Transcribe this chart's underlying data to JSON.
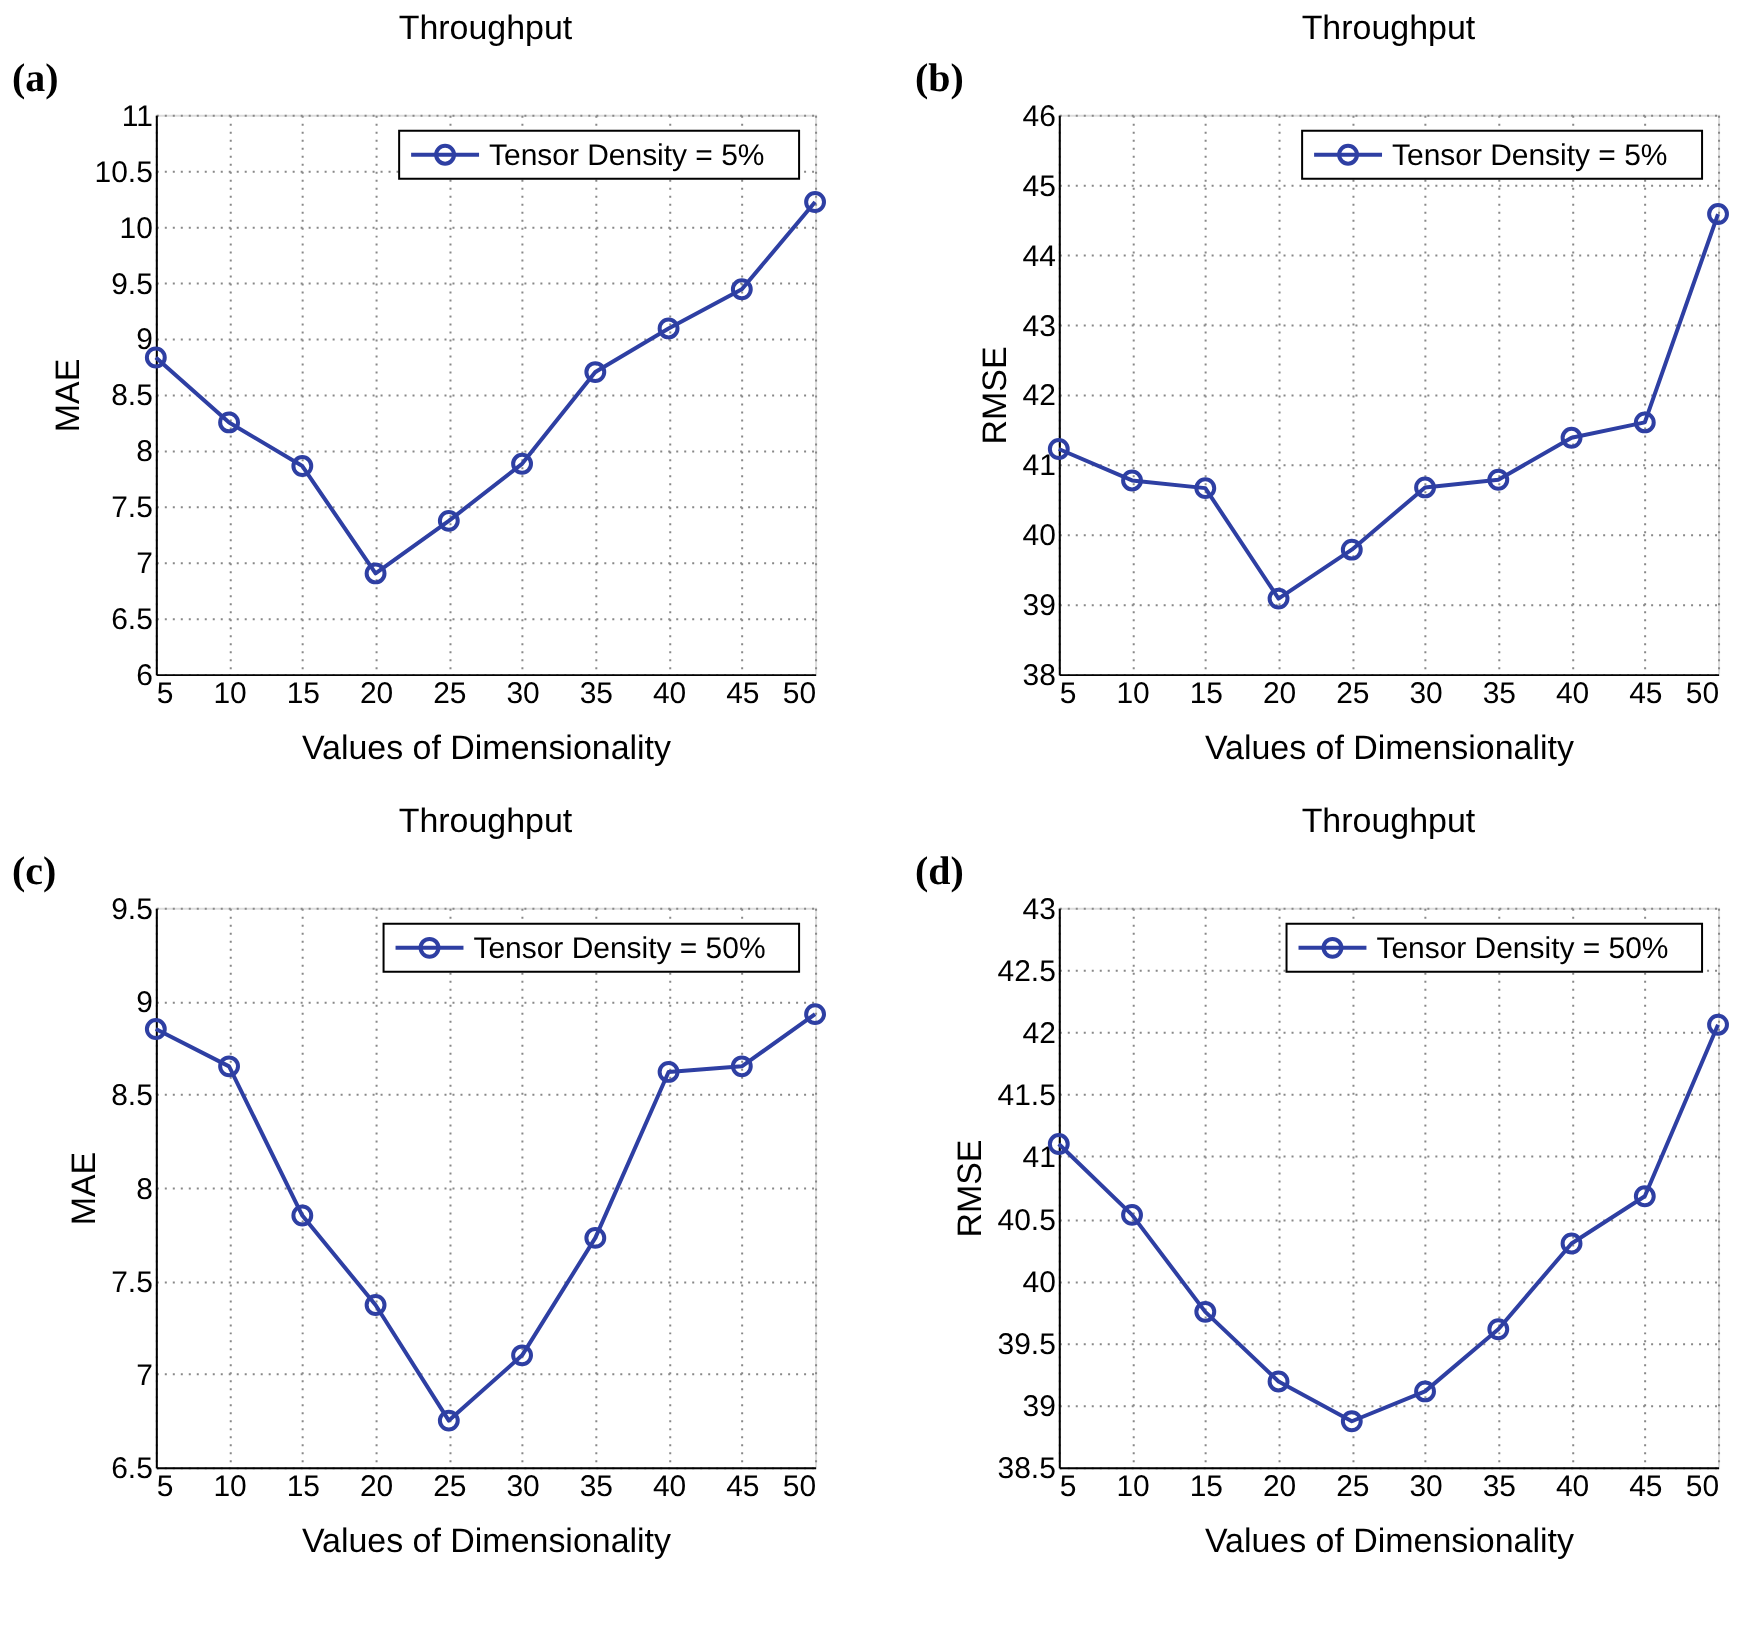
{
  "chart_data": [
    {
      "type": "line",
      "title": "Throughput",
      "annotations": [
        "(a)"
      ],
      "xlabel": "Values of Dimensionality",
      "ylabel": "MAE",
      "x": [
        5,
        10,
        15,
        20,
        25,
        30,
        35,
        40,
        45,
        50
      ],
      "xlim": [
        5,
        50
      ],
      "xticks": [
        5,
        10,
        15,
        20,
        25,
        30,
        35,
        40,
        45,
        50
      ],
      "ylim": [
        6,
        11
      ],
      "yticks": [
        6,
        6.5,
        7,
        7.5,
        8,
        8.5,
        9,
        9.5,
        10,
        10.5,
        11
      ],
      "grid": true,
      "legend": "top right",
      "marker": "circle",
      "line_style": "solid",
      "series": [
        {
          "name": "Tensor Density = 5%",
          "color": "#2e3fa3",
          "values": [
            8.83,
            8.25,
            7.86,
            6.9,
            7.37,
            7.88,
            8.7,
            9.09,
            9.44,
            10.22
          ]
        }
      ]
    },
    {
      "type": "line",
      "title": "Throughput",
      "annotations": [
        "(b)"
      ],
      "xlabel": "Values of Dimensionality",
      "ylabel": "RMSE",
      "x": [
        5,
        10,
        15,
        20,
        25,
        30,
        35,
        40,
        45,
        50
      ],
      "xlim": [
        5,
        50
      ],
      "xticks": [
        5,
        10,
        15,
        20,
        25,
        30,
        35,
        40,
        45,
        50
      ],
      "ylim": [
        38,
        46
      ],
      "yticks": [
        38,
        39,
        40,
        41,
        42,
        43,
        44,
        45,
        46
      ],
      "grid": true,
      "legend": "top right",
      "marker": "circle",
      "line_style": "solid",
      "series": [
        {
          "name": "Tensor Density = 5%",
          "color": "#2e3fa3",
          "values": [
            41.22,
            40.77,
            40.66,
            39.08,
            39.78,
            40.67,
            40.78,
            41.38,
            41.6,
            44.58
          ]
        }
      ]
    },
    {
      "type": "line",
      "title": "Throughput",
      "annotations": [
        "(c)"
      ],
      "xlabel": "Values of Dimensionality",
      "ylabel": "MAE",
      "x": [
        5,
        10,
        15,
        20,
        25,
        30,
        35,
        40,
        45,
        50
      ],
      "xlim": [
        5,
        50
      ],
      "xticks": [
        5,
        10,
        15,
        20,
        25,
        30,
        35,
        40,
        45,
        50
      ],
      "ylim": [
        6.5,
        9.5
      ],
      "yticks": [
        6.5,
        7,
        7.5,
        8,
        8.5,
        9,
        9.5
      ],
      "grid": true,
      "legend": "top right",
      "marker": "circle",
      "line_style": "solid",
      "series": [
        {
          "name": "Tensor Density = 50%",
          "color": "#2e3fa3",
          "values": [
            8.85,
            8.65,
            7.85,
            7.37,
            6.75,
            7.1,
            7.73,
            8.62,
            8.65,
            8.93
          ]
        }
      ]
    },
    {
      "type": "line",
      "title": "Throughput",
      "annotations": [
        "(d)"
      ],
      "xlabel": "Values of Dimensionality",
      "ylabel": "RMSE",
      "x": [
        5,
        10,
        15,
        20,
        25,
        30,
        35,
        40,
        45,
        50
      ],
      "xlim": [
        5,
        50
      ],
      "xticks": [
        5,
        10,
        15,
        20,
        25,
        30,
        35,
        40,
        45,
        50
      ],
      "ylim": [
        38.5,
        43
      ],
      "yticks": [
        38.5,
        39,
        39.5,
        40,
        40.5,
        41,
        41.5,
        42,
        42.5,
        43
      ],
      "grid": true,
      "legend": "top right",
      "marker": "circle",
      "line_style": "solid",
      "series": [
        {
          "name": "Tensor Density = 50%",
          "color": "#2e3fa3",
          "values": [
            41.1,
            40.53,
            39.75,
            39.19,
            38.87,
            39.11,
            39.61,
            40.3,
            40.68,
            42.06
          ]
        }
      ]
    }
  ]
}
